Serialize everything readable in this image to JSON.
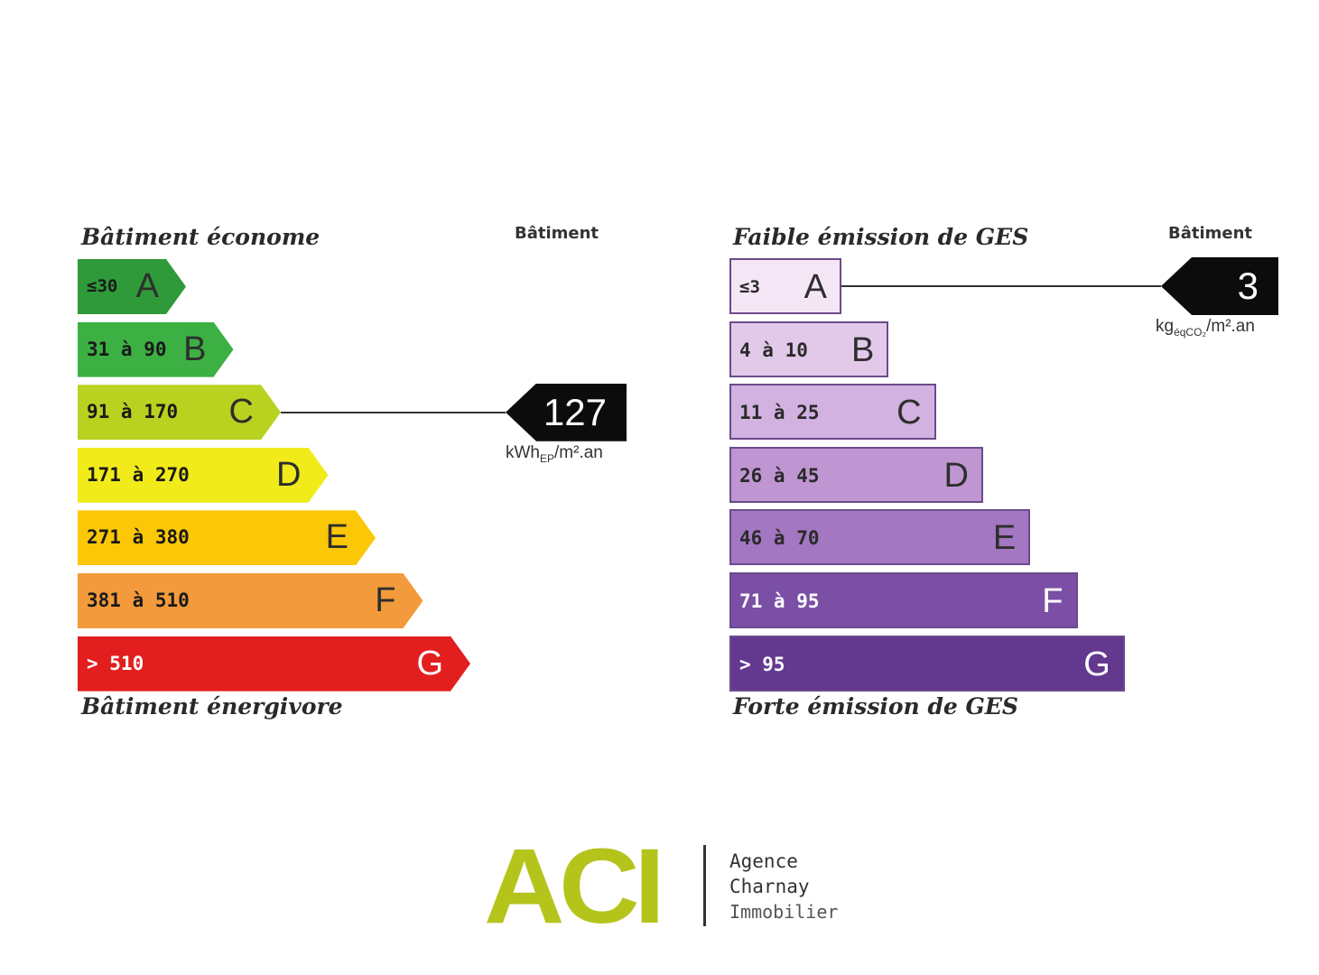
{
  "energy": {
    "top_label": "Bâtiment économe",
    "bottom_label": "Bâtiment énergivore",
    "column_label": "Bâtiment",
    "value": "127",
    "unit_main": "kWh",
    "unit_sub": "EP",
    "unit_rest": "/m².an",
    "classes": [
      {
        "range": "≤30",
        "letter": "A",
        "color": "#2e9a3a",
        "text_color": "#1a1a1a"
      },
      {
        "range": "31 à 90",
        "letter": "B",
        "color": "#3cb043",
        "text_color": "#1a1a1a"
      },
      {
        "range": "91 à 170",
        "letter": "C",
        "color": "#b9d220",
        "text_color": "#1a1a1a"
      },
      {
        "range": "171 à 270",
        "letter": "D",
        "color": "#f1eb1a",
        "text_color": "#1a1a1a"
      },
      {
        "range": "271 à 380",
        "letter": "E",
        "color": "#fcc707",
        "text_color": "#1a1a1a"
      },
      {
        "range": "381 à 510",
        "letter": "F",
        "color": "#f39a3c",
        "text_color": "#1a1a1a"
      },
      {
        "range": "> 510",
        "letter": "G",
        "color": "#e31e1e",
        "text_color": "#ffffff"
      }
    ],
    "active_class": "C"
  },
  "ges": {
    "top_label": "Faible émission de GES",
    "bottom_label": "Forte émission de GES",
    "column_label": "Bâtiment",
    "value": "3",
    "unit_main": "kg",
    "unit_sub": "éqCO₂",
    "unit_rest": "/m².an",
    "classes": [
      {
        "range": "≤3",
        "letter": "A",
        "color": "#f5e6f5"
      },
      {
        "range": "4 à 10",
        "letter": "B",
        "color": "#e2c9ea"
      },
      {
        "range": "11 à 25",
        "letter": "C",
        "color": "#d2b2e0"
      },
      {
        "range": "26 à 45",
        "letter": "D",
        "color": "#bf96d2"
      },
      {
        "range": "46 à 70",
        "letter": "E",
        "color": "#a377c2"
      },
      {
        "range": "71 à 95",
        "letter": "F",
        "color": "#7b4fa6"
      },
      {
        "range": "> 95",
        "letter": "G",
        "color": "#63388f"
      }
    ],
    "active_class": "A"
  },
  "logo": {
    "mark": "ACI",
    "line1": "Agence",
    "line2": "Charnay",
    "line3": "Immobilier",
    "color": "#b5c41b"
  }
}
